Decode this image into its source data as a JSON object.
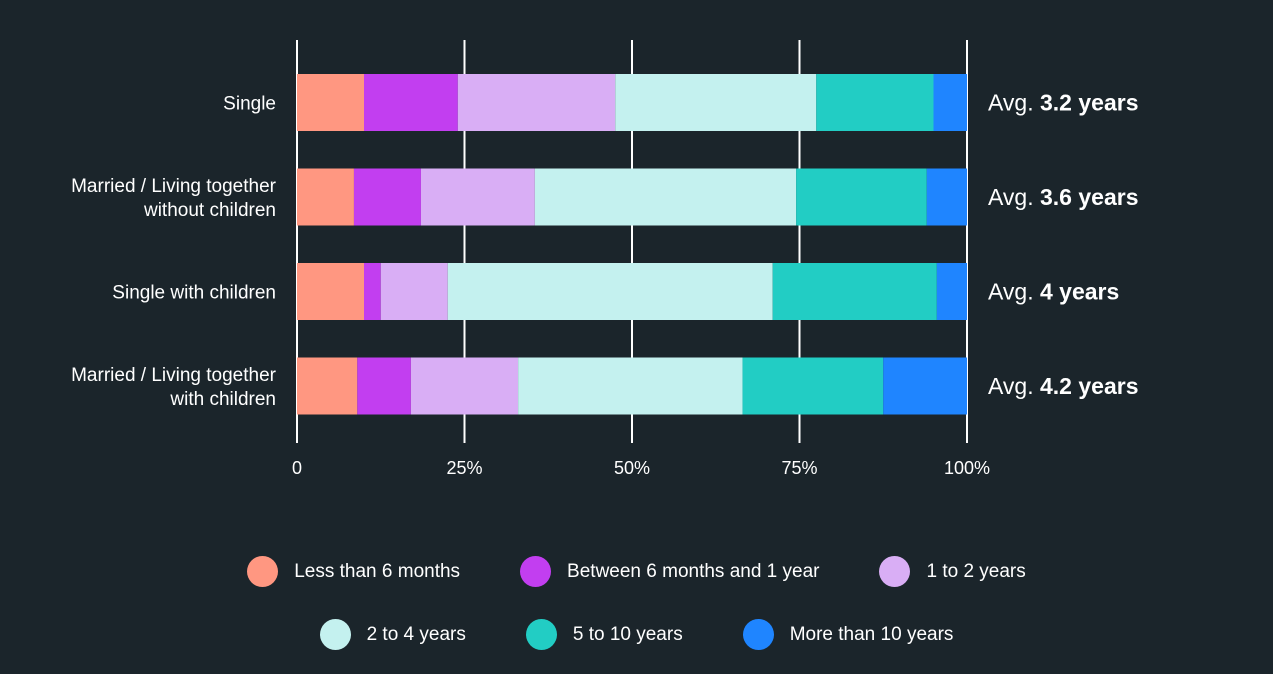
{
  "chart_data": {
    "type": "bar",
    "orientation": "horizontal",
    "stacked": true,
    "categories": [
      [
        "Single"
      ],
      [
        "Married / Living together",
        "without children"
      ],
      [
        "Single with children"
      ],
      [
        "Married / Living together",
        "with children"
      ]
    ],
    "series": [
      {
        "name": "Less than 6 months",
        "color": "#ff9781",
        "values": [
          10,
          8.5,
          10,
          9
        ]
      },
      {
        "name": "Between 6 months and 1 year",
        "color": "#c23ef0",
        "values": [
          14,
          10,
          2.5,
          8
        ]
      },
      {
        "name": "1 to 2 years",
        "color": "#d9aef5",
        "values": [
          23.5,
          17,
          10,
          16
        ]
      },
      {
        "name": "2 to 4 years",
        "color": "#c4f1ef",
        "values": [
          30,
          39,
          48.5,
          33.5
        ]
      },
      {
        "name": "5 to 10 years",
        "color": "#22cdc4",
        "values": [
          17.5,
          19.5,
          24.5,
          21
        ]
      },
      {
        "name": "More than 10 years",
        "color": "#1f85ff",
        "values": [
          5,
          6,
          4.5,
          12.5
        ]
      }
    ],
    "annotations": [
      {
        "prefix": "Avg. ",
        "value": "3.2 years"
      },
      {
        "prefix": "Avg. ",
        "value": "3.6 years"
      },
      {
        "prefix": "Avg. ",
        "value": "4 years"
      },
      {
        "prefix": "Avg. ",
        "value": "4.2 years"
      }
    ],
    "xticks": [
      "0",
      "25%",
      "50%",
      "75%",
      "100%"
    ],
    "xlim": [
      0,
      100
    ],
    "grid": true,
    "legend_position": "bottom"
  }
}
